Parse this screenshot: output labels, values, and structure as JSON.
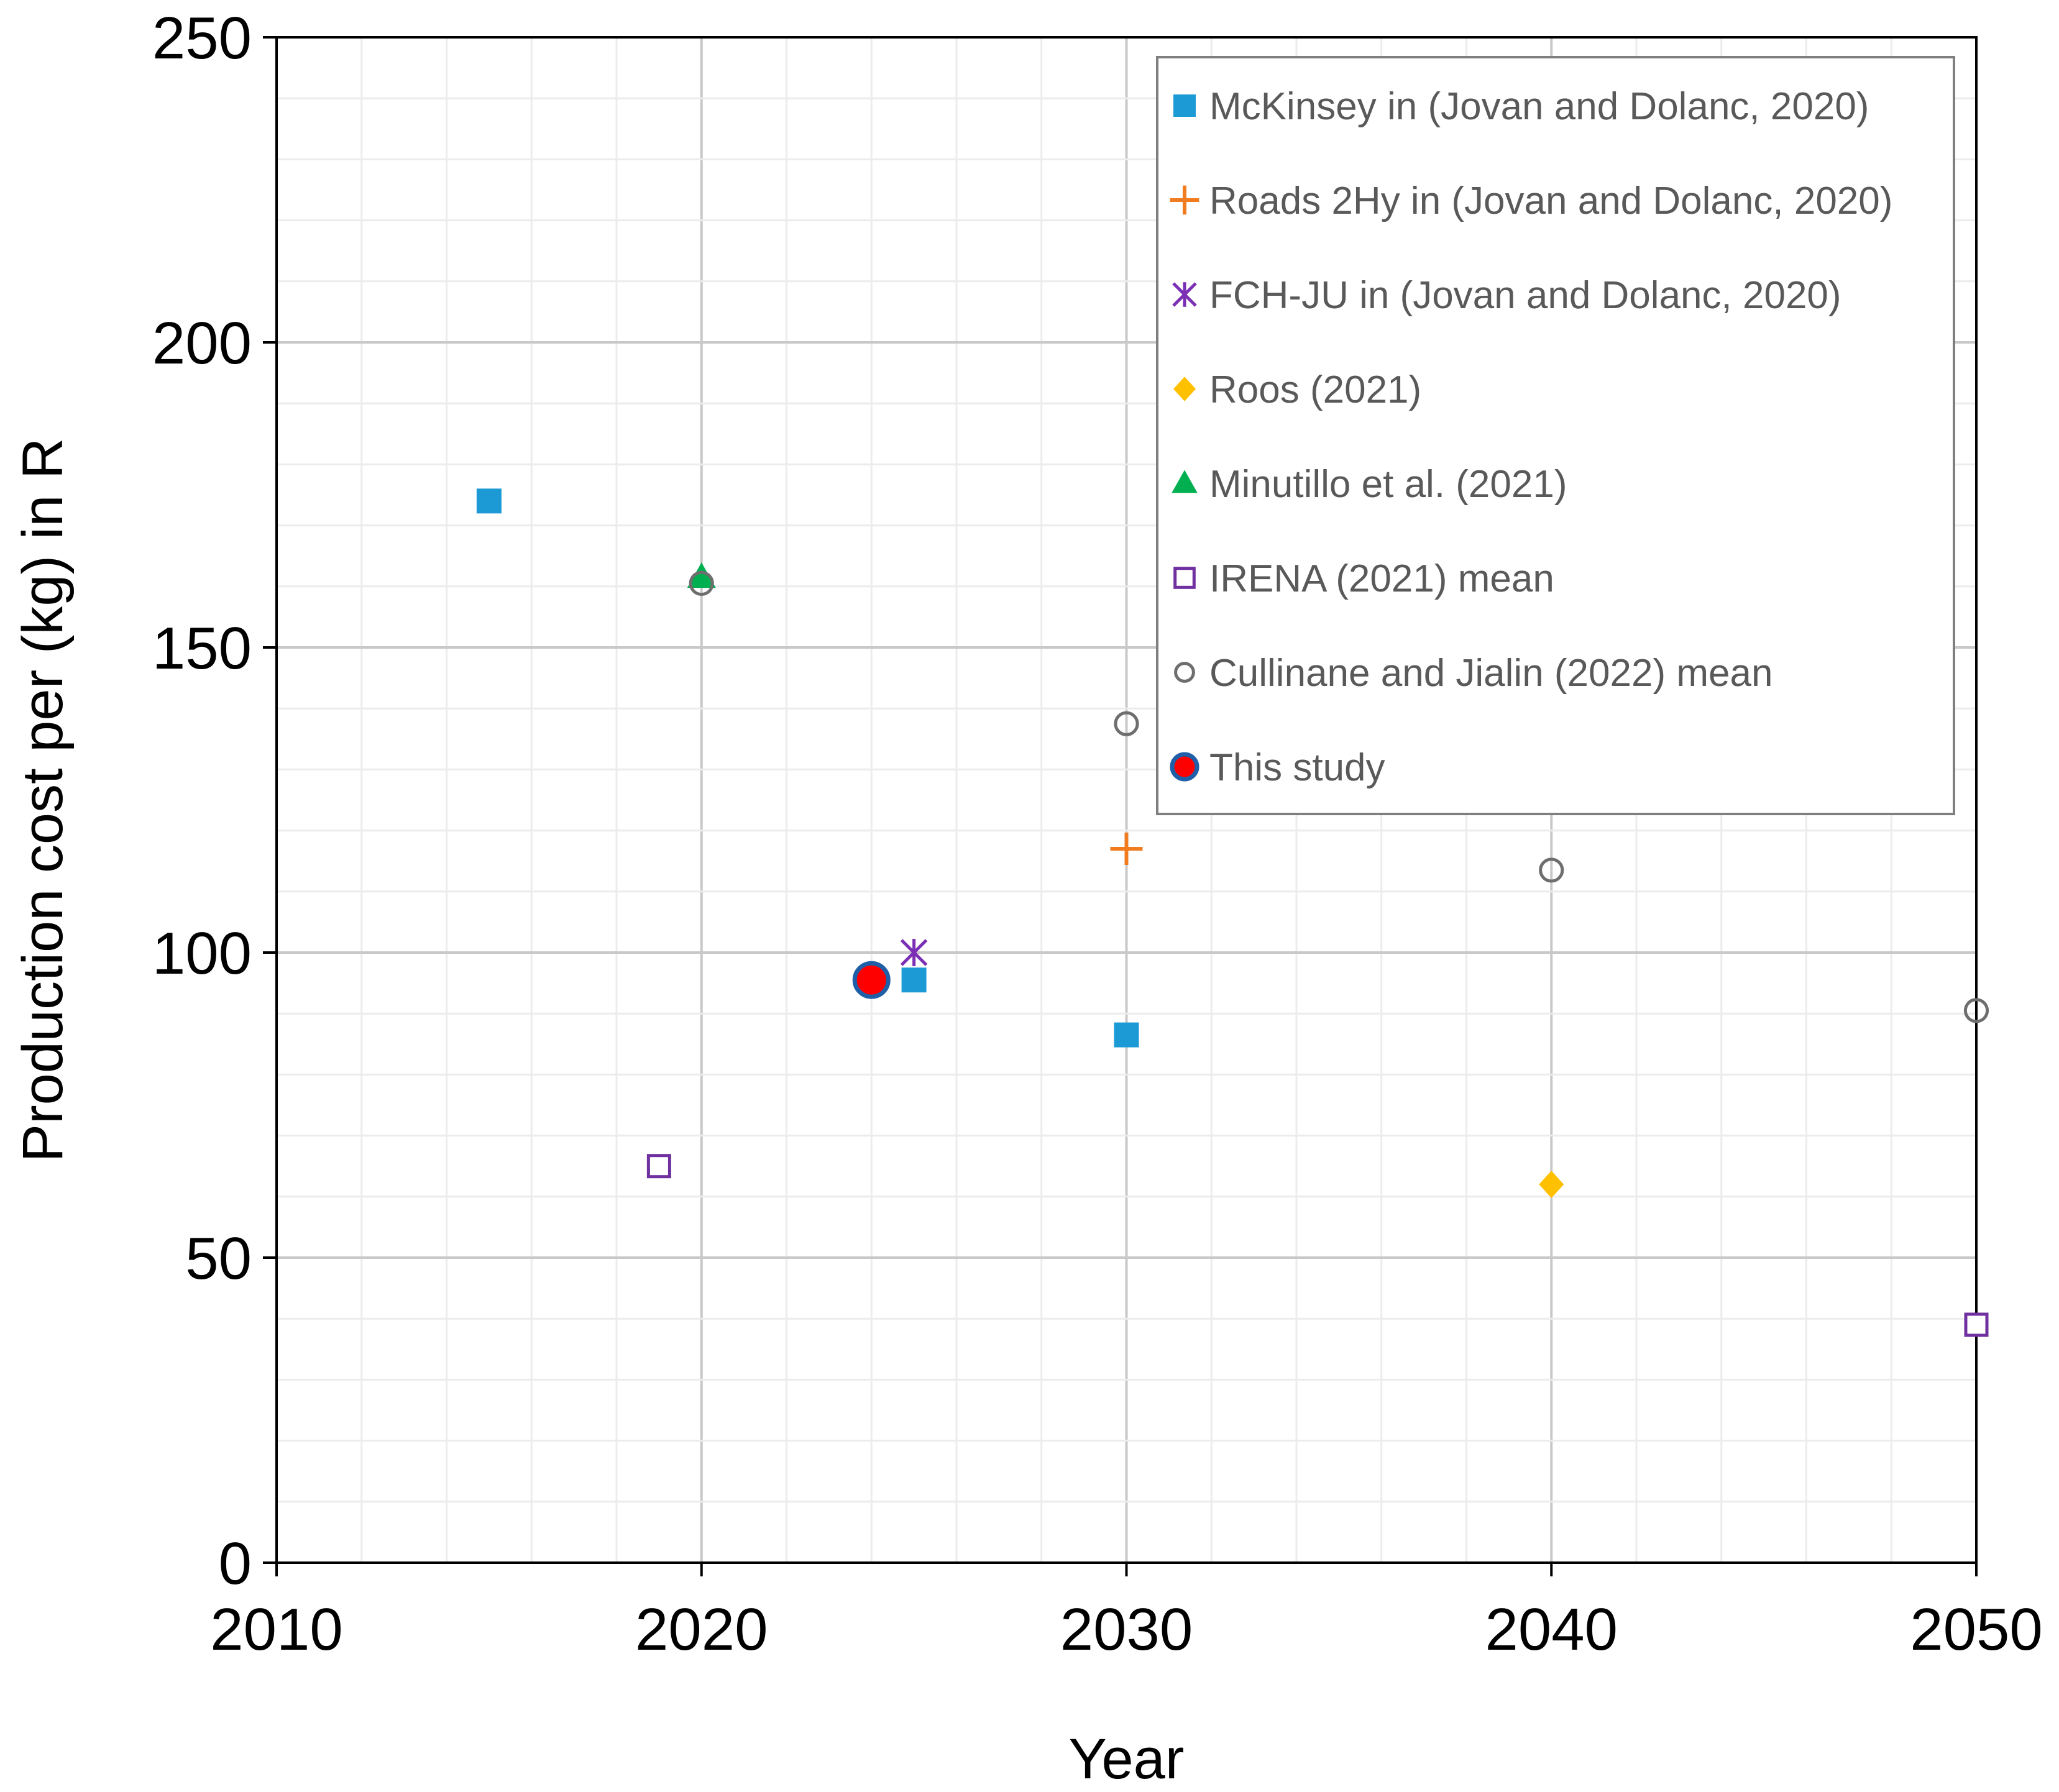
{
  "chart_data": {
    "type": "scatter",
    "title": "",
    "xlabel": "Year",
    "ylabel": "Production cost per (kg) in R",
    "xlim": [
      2010,
      2050
    ],
    "ylim": [
      0,
      250
    ],
    "xticks": [
      "2010",
      "2020",
      "2030",
      "2040",
      "2050"
    ],
    "yticks": [
      "0",
      "50",
      "100",
      "150",
      "200",
      "250"
    ],
    "grid": true,
    "legend_position": "top-right",
    "series": [
      {
        "name": "McKinsey in (Jovan and Dolanc, 2020)",
        "marker": "filled-square",
        "color": "#1b9ad6",
        "points": [
          [
            2015,
            174
          ],
          [
            2025,
            95.5
          ],
          [
            2030,
            86.5
          ]
        ]
      },
      {
        "name": "Roads 2Hy in (Jovan and Dolanc, 2020)",
        "marker": "plus",
        "color": "#f07c1f",
        "points": [
          [
            2030,
            117
          ]
        ]
      },
      {
        "name": "FCH-JU in (Jovan and Dolanc, 2020)",
        "marker": "star",
        "color": "#7b2fb5",
        "points": [
          [
            2025,
            100
          ]
        ]
      },
      {
        "name": "Roos (2021)",
        "marker": "filled-diamond",
        "color": "#ffc000",
        "points": [
          [
            2040,
            62
          ]
        ]
      },
      {
        "name": "Minutillo et al. (2021)",
        "marker": "filled-triangle",
        "color": "#00b050",
        "points": [
          [
            2020,
            161.5
          ]
        ]
      },
      {
        "name": "IRENA (2021) mean",
        "marker": "open-square",
        "color": "#7030a0",
        "points": [
          [
            2019,
            65
          ],
          [
            2050,
            39
          ]
        ]
      },
      {
        "name": "Cullinane and Jialin (2022) mean",
        "marker": "open-circle",
        "color": "#6e6e6e",
        "points": [
          [
            2020,
            160.5
          ],
          [
            2030,
            137.5
          ],
          [
            2040,
            113.5
          ],
          [
            2050,
            90.5
          ]
        ]
      },
      {
        "name": "This study",
        "marker": "filled-circle",
        "color": "#ff0000",
        "edge_color": "#1f5fa8",
        "points": [
          [
            2024,
            95.5
          ]
        ]
      }
    ]
  }
}
